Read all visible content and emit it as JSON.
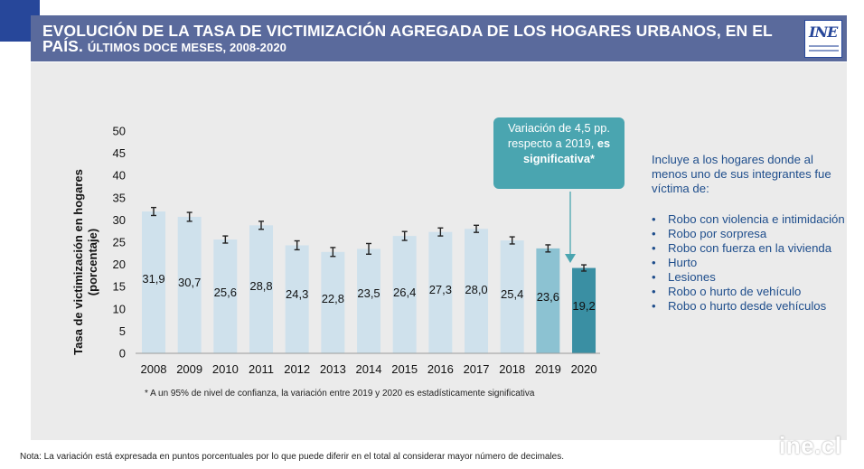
{
  "header": {
    "title_main": "EVOLUCIÓN DE LA TASA DE VICTIMIZACIÓN AGREGADA DE LOS HOGARES URBANOS, EN EL",
    "title_line2_prefix": "PAÍS.",
    "title_line2_sub": "ÚLTIMOS DOCE MESES, 2008-2020",
    "logo_mark": "INE"
  },
  "callout": {
    "text_plain": "Variación de 4,5 pp. respecto a 2019,",
    "text_bold": "es significativa*"
  },
  "side_note": {
    "intro": "Incluye a los hogares donde al menos uno de sus integrantes fue víctima de:",
    "items": [
      "Robo con violencia e intimidación",
      "Robo por sorpresa",
      "Robo con fuerza en la vivienda",
      "Hurto",
      "Lesiones",
      "Robo o hurto de vehículo",
      "Robo o hurto desde vehículos"
    ],
    "bullet_glyph": "•"
  },
  "footnotes": {
    "significance": "* A un 95% de nivel de confianza, la variación entre 2019 y 2020 es estadísticamente significativa",
    "note": "Nota: La variación está expresada en puntos porcentuales por lo que puede diferir en el total al considerar mayor número de decimales."
  },
  "watermark": "ine.cl",
  "colors": {
    "bar_default": "#cfe1ec",
    "bar_2019": "#8cc2d2",
    "bar_2020": "#3a8fa3",
    "title_bar": "#5a6a9c",
    "accent": "#4aa5b0"
  },
  "chart_data": {
    "type": "bar",
    "categories": [
      "2008",
      "2009",
      "2010",
      "2011",
      "2012",
      "2013",
      "2014",
      "2015",
      "2016",
      "2017",
      "2018",
      "2019",
      "2020"
    ],
    "values": [
      31.9,
      30.7,
      25.6,
      28.8,
      24.3,
      22.8,
      23.5,
      26.4,
      27.3,
      28.0,
      25.4,
      23.6,
      19.2
    ],
    "value_labels": [
      "31,9",
      "30,7",
      "25,6",
      "28,8",
      "24,3",
      "22,8",
      "23,5",
      "26,4",
      "27,3",
      "28,0",
      "25,4",
      "23,6",
      "19,2"
    ],
    "error_bars": {
      "lower": [
        31.0,
        29.7,
        24.8,
        27.9,
        23.3,
        21.8,
        22.3,
        25.4,
        26.4,
        27.2,
        24.6,
        22.8,
        18.5
      ],
      "upper": [
        32.8,
        31.7,
        26.4,
        29.7,
        25.3,
        23.8,
        24.7,
        27.4,
        28.2,
        28.8,
        26.2,
        24.4,
        19.9
      ]
    },
    "ylabel": "Tasa de victimización en hogares",
    "ylabel_units": "(porcentaje)",
    "ylim": [
      0,
      50
    ],
    "yticks": [
      0,
      5,
      10,
      15,
      20,
      25,
      30,
      35,
      40,
      45,
      50
    ],
    "grid": false
  }
}
